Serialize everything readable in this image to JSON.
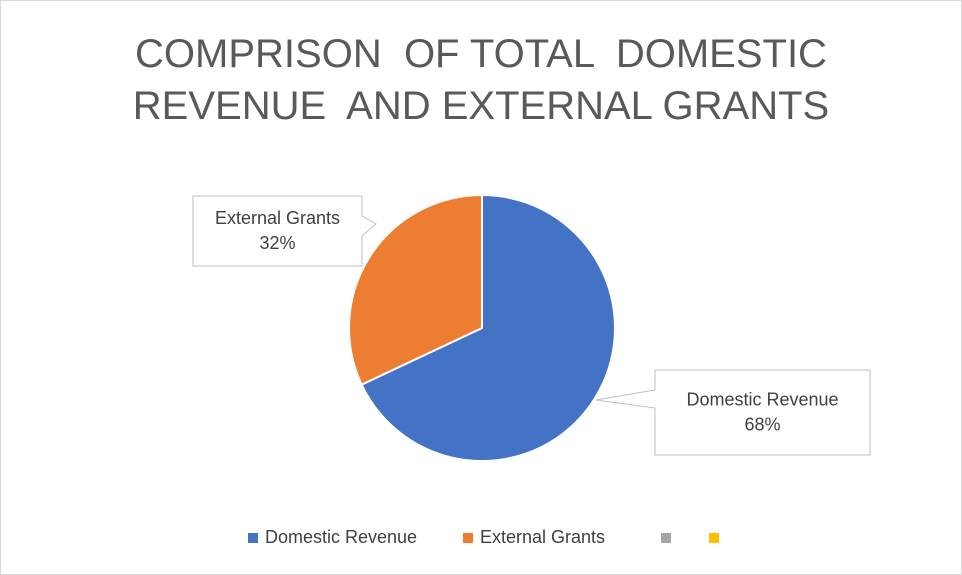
{
  "chart_data": {
    "type": "pie",
    "title": "COMPRISON  OF TOTAL  DOMESTIC\nREVENUE  AND EXTERNAL GRANTS",
    "categories": [
      "Domestic Revenue",
      "External Grants",
      null,
      null
    ],
    "values": [
      68,
      32,
      null,
      null
    ],
    "value_labels": [
      "68%",
      "32%",
      null,
      null
    ],
    "colors": [
      "#4472c4",
      "#ed7d31",
      "#a5a5a5",
      "#ffc000"
    ],
    "legend": "bottom"
  }
}
